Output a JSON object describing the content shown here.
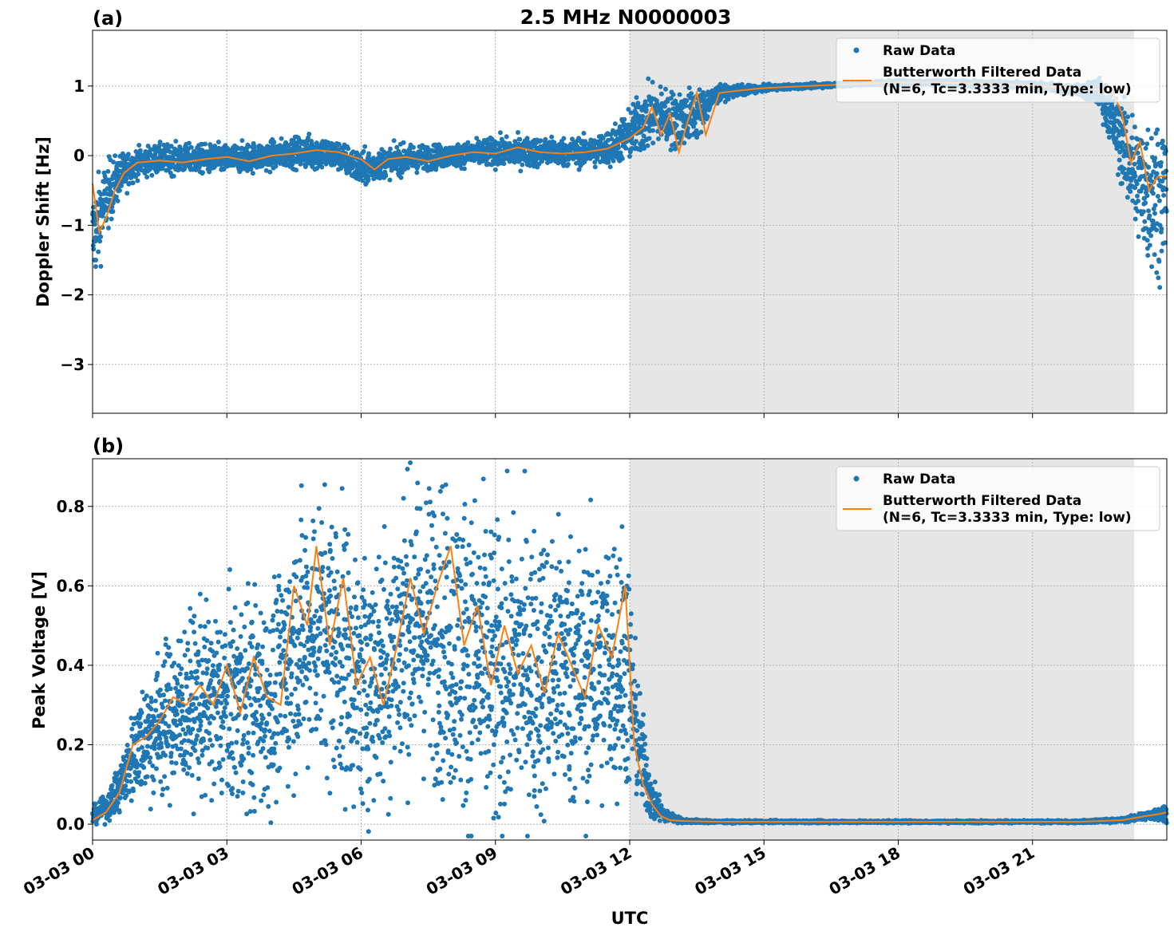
{
  "figure": {
    "title": "2.5 MHz N0000003",
    "xlabel": "UTC",
    "x_tick_labels": [
      "03-03 00",
      "03-03 03",
      "03-03 06",
      "03-03 09",
      "03-03 12",
      "03-03 15",
      "03-03 18",
      "03-03 21"
    ],
    "colors": {
      "raw": "#1f77b4",
      "filtered": "#ff7f0e",
      "shade": "#e6e6e6",
      "grid": "#b0b0b0"
    }
  },
  "legend": {
    "raw_label": "Raw Data",
    "filtered_label_line1": "Butterworth Filtered Data",
    "filtered_label_line2": "(N=6, Tc=3.3333 min, Type: low)",
    "placement": "upper-right"
  },
  "chart_data": [
    {
      "type": "scatter",
      "panel_label": "(a)",
      "ylabel": "Doppler Shift [Hz]",
      "y_tick_labels": [
        "−3",
        "−2",
        "−1",
        "0",
        "1"
      ],
      "y_ticks": [
        -3,
        -2,
        -1,
        0,
        1
      ],
      "xlim_hours": [
        0,
        24
      ],
      "ylim": [
        -3.7,
        1.8
      ],
      "grid": true,
      "shaded_region_hours": [
        12.0,
        23.27
      ],
      "series": [
        {
          "name": "Raw Data",
          "kind": "points",
          "envelope_hours": [
            0,
            0.3,
            0.6,
            1,
            1.5,
            2,
            3,
            4,
            4.5,
            5,
            5.5,
            6,
            6.5,
            7,
            8,
            9,
            10,
            11,
            11.5,
            12,
            12.3,
            12.6,
            13,
            13.5,
            14,
            15,
            16,
            17,
            18,
            19,
            20,
            21,
            22,
            22.5,
            23,
            23.3,
            23.6,
            24
          ],
          "envelope_center": [
            -1.2,
            -0.6,
            -0.3,
            -0.1,
            -0.05,
            -0.05,
            -0.05,
            0.0,
            0.05,
            0.05,
            0.0,
            -0.2,
            -0.1,
            -0.05,
            0.0,
            0.05,
            0.05,
            0.05,
            0.1,
            0.3,
            0.5,
            0.6,
            0.5,
            0.6,
            0.9,
            0.97,
            1.0,
            1.03,
            1.05,
            1.05,
            1.03,
            1.0,
            0.95,
            0.9,
            0.2,
            -0.3,
            -0.5,
            -0.5
          ],
          "envelope_spread": [
            0.7,
            0.5,
            0.3,
            0.2,
            0.2,
            0.2,
            0.2,
            0.2,
            0.2,
            0.25,
            0.2,
            0.25,
            0.2,
            0.2,
            0.15,
            0.2,
            0.2,
            0.2,
            0.25,
            0.35,
            0.45,
            0.4,
            0.4,
            0.35,
            0.1,
            0.04,
            0.03,
            0.03,
            0.03,
            0.04,
            0.04,
            0.05,
            0.06,
            0.2,
            0.6,
            0.8,
            1.1,
            1.0
          ]
        },
        {
          "name": "Butterworth Filtered Data",
          "kind": "line",
          "x_hours": [
            0,
            0.15,
            0.3,
            0.5,
            0.7,
            1,
            1.5,
            2,
            2.5,
            3,
            3.5,
            4,
            4.5,
            5,
            5.5,
            6,
            6.3,
            6.6,
            7,
            7.5,
            8,
            8.5,
            9,
            9.5,
            10,
            10.5,
            11,
            11.5,
            12,
            12.3,
            12.5,
            12.7,
            12.9,
            13.1,
            13.3,
            13.5,
            13.7,
            14,
            14.5,
            15,
            16,
            17,
            18,
            19,
            20,
            21,
            22,
            22.5,
            22.8,
            23.0,
            23.2,
            23.4,
            23.6,
            23.8,
            24
          ],
          "y": [
            -0.4,
            -1.1,
            -0.9,
            -0.5,
            -0.25,
            -0.1,
            -0.07,
            -0.1,
            -0.05,
            -0.02,
            -0.08,
            0.0,
            0.03,
            0.08,
            0.05,
            -0.05,
            -0.2,
            -0.05,
            -0.02,
            -0.08,
            0.0,
            0.05,
            0.03,
            0.12,
            0.05,
            0.03,
            0.05,
            0.1,
            0.25,
            0.4,
            0.7,
            0.3,
            0.6,
            0.05,
            0.5,
            0.9,
            0.3,
            0.9,
            0.94,
            0.97,
            1.0,
            1.03,
            1.05,
            1.05,
            1.03,
            1.0,
            0.97,
            0.95,
            0.9,
            0.6,
            -0.1,
            0.2,
            -0.5,
            -0.3,
            -0.3
          ]
        }
      ]
    },
    {
      "type": "scatter",
      "panel_label": "(b)",
      "ylabel": "Peak Voltage [V]",
      "y_tick_labels": [
        "0.0",
        "0.2",
        "0.4",
        "0.6",
        "0.8"
      ],
      "y_ticks": [
        0,
        0.2,
        0.4,
        0.6,
        0.8
      ],
      "xlim_hours": [
        0,
        24
      ],
      "ylim": [
        -0.04,
        0.92
      ],
      "grid": true,
      "shaded_region_hours": [
        12.0,
        23.27
      ],
      "series": [
        {
          "name": "Raw Data",
          "kind": "points",
          "envelope_hours": [
            0,
            0.3,
            0.6,
            1,
            1.5,
            2,
            2.5,
            3,
            3.5,
            4,
            4.5,
            5,
            5.5,
            6,
            6.5,
            7,
            7.5,
            8,
            8.5,
            9,
            9.5,
            10,
            10.5,
            11,
            11.5,
            11.9,
            12.2,
            12.5,
            12.8,
            13.2,
            14,
            16,
            18,
            20,
            22,
            23,
            23.5,
            24
          ],
          "envelope_center": [
            0.02,
            0.04,
            0.09,
            0.2,
            0.25,
            0.29,
            0.31,
            0.3,
            0.32,
            0.3,
            0.45,
            0.5,
            0.45,
            0.35,
            0.4,
            0.5,
            0.5,
            0.45,
            0.42,
            0.35,
            0.4,
            0.38,
            0.4,
            0.37,
            0.4,
            0.42,
            0.2,
            0.06,
            0.02,
            0.008,
            0.006,
            0.006,
            0.006,
            0.006,
            0.006,
            0.01,
            0.02,
            0.03
          ],
          "envelope_spread": [
            0.02,
            0.03,
            0.06,
            0.12,
            0.18,
            0.2,
            0.22,
            0.25,
            0.26,
            0.25,
            0.3,
            0.32,
            0.35,
            0.3,
            0.33,
            0.35,
            0.35,
            0.38,
            0.4,
            0.38,
            0.35,
            0.35,
            0.35,
            0.32,
            0.33,
            0.33,
            0.15,
            0.05,
            0.015,
            0.005,
            0.003,
            0.003,
            0.003,
            0.003,
            0.003,
            0.005,
            0.01,
            0.02
          ]
        },
        {
          "name": "Butterworth Filtered Data",
          "kind": "line",
          "x_hours": [
            0,
            0.3,
            0.6,
            0.9,
            1.2,
            1.5,
            1.8,
            2.1,
            2.4,
            2.7,
            3.0,
            3.3,
            3.6,
            3.9,
            4.2,
            4.5,
            4.8,
            5.0,
            5.3,
            5.6,
            5.9,
            6.2,
            6.5,
            6.8,
            7.1,
            7.4,
            7.7,
            8.0,
            8.3,
            8.6,
            8.9,
            9.2,
            9.5,
            9.8,
            10.1,
            10.4,
            10.7,
            11.0,
            11.3,
            11.6,
            11.9,
            12.1,
            12.3,
            12.5,
            12.7,
            12.9,
            13.2,
            14,
            16,
            18,
            20,
            22,
            23,
            23.5,
            23.8,
            24
          ],
          "y": [
            0.01,
            0.03,
            0.08,
            0.2,
            0.22,
            0.26,
            0.32,
            0.3,
            0.35,
            0.3,
            0.4,
            0.28,
            0.42,
            0.32,
            0.3,
            0.6,
            0.5,
            0.7,
            0.45,
            0.62,
            0.35,
            0.42,
            0.3,
            0.45,
            0.62,
            0.48,
            0.6,
            0.7,
            0.45,
            0.55,
            0.35,
            0.5,
            0.38,
            0.45,
            0.33,
            0.48,
            0.4,
            0.32,
            0.5,
            0.42,
            0.6,
            0.2,
            0.1,
            0.05,
            0.02,
            0.01,
            0.008,
            0.006,
            0.006,
            0.006,
            0.006,
            0.006,
            0.01,
            0.02,
            0.025,
            0.03
          ]
        }
      ]
    }
  ]
}
